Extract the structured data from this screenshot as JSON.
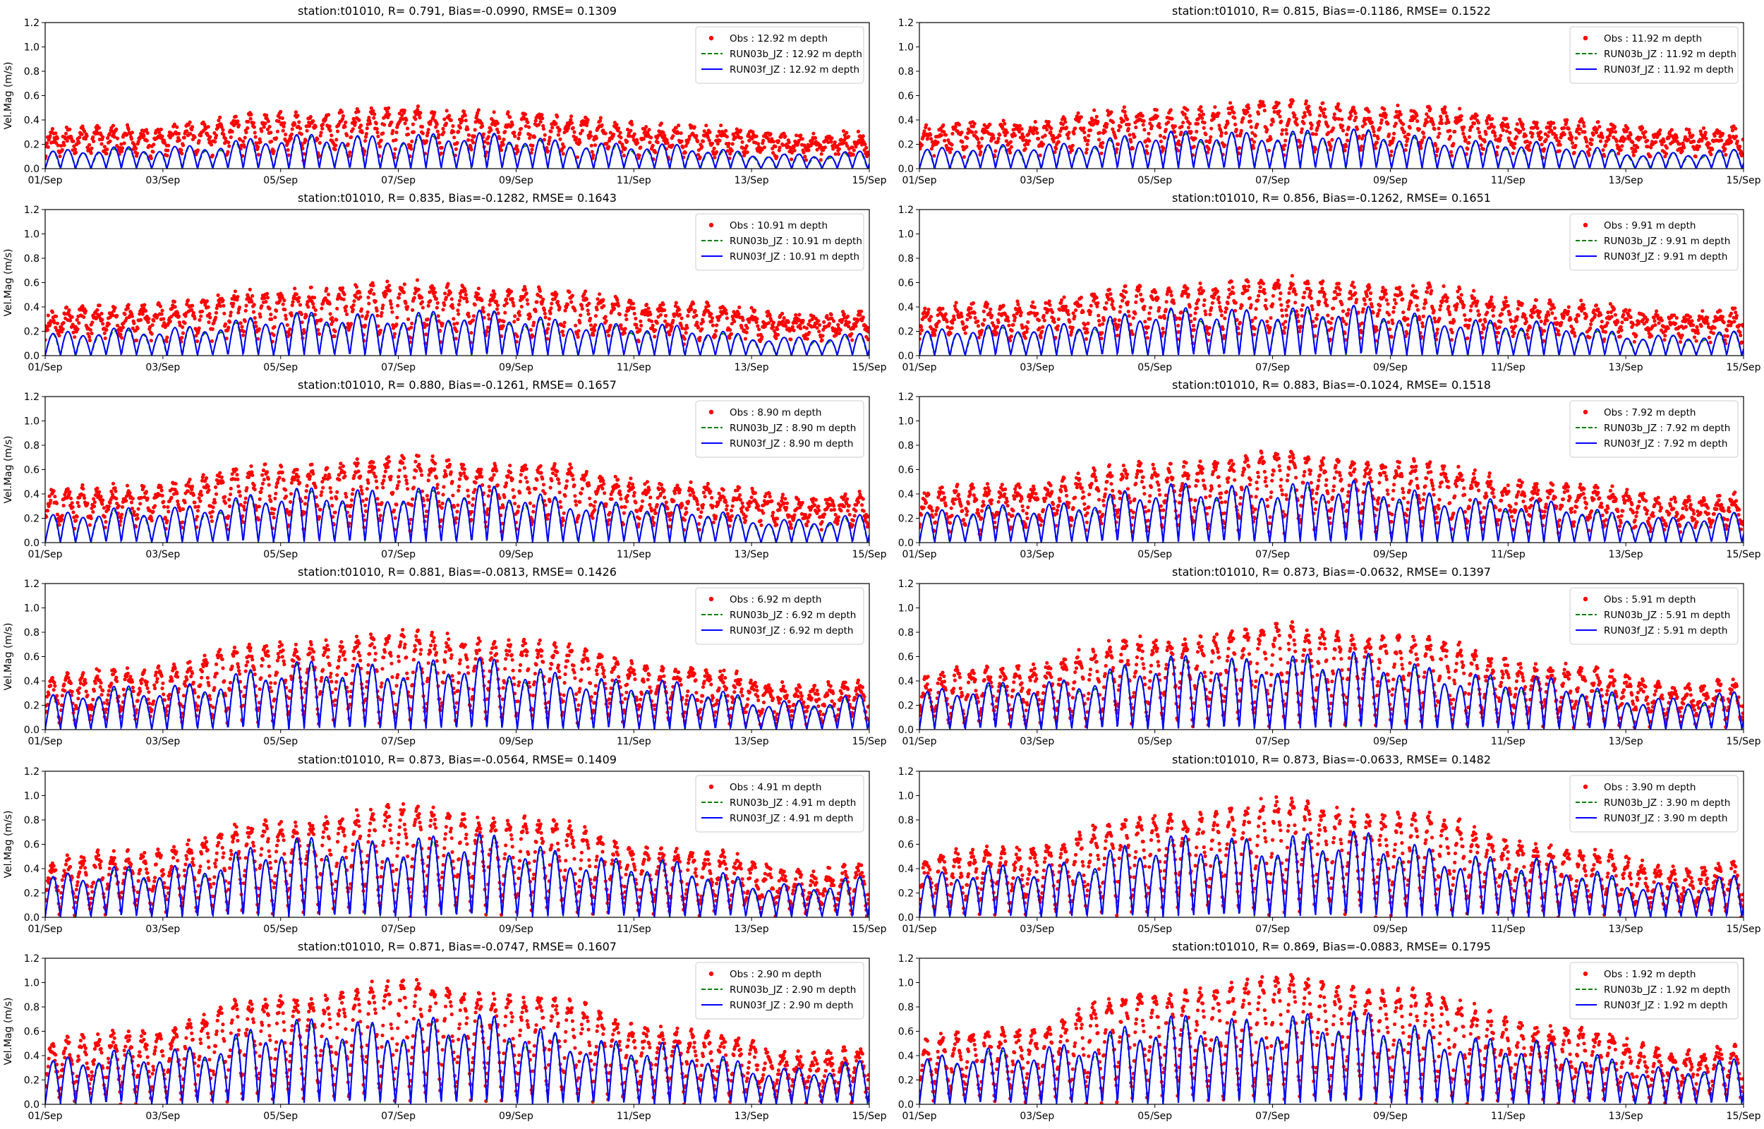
{
  "figure": {
    "ylabel": "Vel.Mag (m/s)"
  },
  "chart_data": [
    {
      "type": "line",
      "title": "station:t01010, R= 0.791, Bias=-0.0990, RMSE= 0.1309",
      "ylim": [
        0,
        1.2
      ],
      "yticks": [
        "0.0",
        "0.2",
        "0.4",
        "0.6",
        "0.8",
        "1.0",
        "1.2"
      ],
      "xticks": [
        "01/Sep",
        "03/Sep",
        "05/Sep",
        "07/Sep",
        "09/Sep",
        "11/Sep",
        "13/Sep",
        "15/Sep"
      ],
      "xlim_days": [
        0,
        14
      ],
      "ylabel": "Vel.Mag (m/s)",
      "legend_position": "top-right",
      "series": [
        {
          "name": "Obs : 12.92 m depth",
          "style": "dots",
          "color": "#ff0000"
        },
        {
          "name": "RUN03b_JZ : 12.92 m depth",
          "style": "dashed",
          "color": "#008000"
        },
        {
          "name": "RUN03f_JZ : 12.92 m depth",
          "style": "solid",
          "color": "#0000ff"
        }
      ],
      "model_peak_m/s": 0.3,
      "obs_peak_m/s": 0.45,
      "obs_base_m/s": 0.12
    },
    {
      "type": "line",
      "title": "station:t01010, R= 0.815, Bias=-0.1186, RMSE= 0.1522",
      "ylim": [
        0,
        1.2
      ],
      "yticks": [
        "0.0",
        "0.2",
        "0.4",
        "0.6",
        "0.8",
        "1.0",
        "1.2"
      ],
      "xticks": [
        "01/Sep",
        "03/Sep",
        "05/Sep",
        "07/Sep",
        "09/Sep",
        "11/Sep",
        "13/Sep",
        "15/Sep"
      ],
      "xlim_days": [
        0,
        14
      ],
      "ylabel": "",
      "legend_position": "top-right",
      "series": [
        {
          "name": "Obs : 11.92 m depth",
          "style": "dots",
          "color": "#ff0000"
        },
        {
          "name": "RUN03b_JZ : 11.92 m depth",
          "style": "dashed",
          "color": "#008000"
        },
        {
          "name": "RUN03f_JZ : 11.92 m depth",
          "style": "solid",
          "color": "#0000ff"
        }
      ],
      "model_peak_m/s": 0.33,
      "obs_peak_m/s": 0.5,
      "obs_base_m/s": 0.14
    },
    {
      "type": "line",
      "title": "station:t01010, R= 0.835, Bias=-0.1282, RMSE= 0.1643",
      "ylim": [
        0,
        1.2
      ],
      "yticks": [
        "0.0",
        "0.2",
        "0.4",
        "0.6",
        "0.8",
        "1.0",
        "1.2"
      ],
      "xticks": [
        "01/Sep",
        "03/Sep",
        "05/Sep",
        "07/Sep",
        "09/Sep",
        "11/Sep",
        "13/Sep",
        "15/Sep"
      ],
      "xlim_days": [
        0,
        14
      ],
      "ylabel": "Vel.Mag (m/s)",
      "legend_position": "top-right",
      "series": [
        {
          "name": "Obs : 10.91 m depth",
          "style": "dots",
          "color": "#ff0000"
        },
        {
          "name": "RUN03b_JZ : 10.91 m depth",
          "style": "dashed",
          "color": "#008000"
        },
        {
          "name": "RUN03f_JZ : 10.91 m depth",
          "style": "solid",
          "color": "#0000ff"
        }
      ],
      "model_peak_m/s": 0.38,
      "obs_peak_m/s": 0.55,
      "obs_base_m/s": 0.15
    },
    {
      "type": "line",
      "title": "station:t01010, R= 0.856, Bias=-0.1262, RMSE= 0.1651",
      "ylim": [
        0,
        1.2
      ],
      "yticks": [
        "0.0",
        "0.2",
        "0.4",
        "0.6",
        "0.8",
        "1.0",
        "1.2"
      ],
      "xticks": [
        "01/Sep",
        "03/Sep",
        "05/Sep",
        "07/Sep",
        "09/Sep",
        "11/Sep",
        "13/Sep",
        "15/Sep"
      ],
      "xlim_days": [
        0,
        14
      ],
      "ylabel": "",
      "legend_position": "top-right",
      "series": [
        {
          "name": "Obs : 9.91 m depth",
          "style": "dots",
          "color": "#ff0000"
        },
        {
          "name": "RUN03b_JZ : 9.91 m depth",
          "style": "dashed",
          "color": "#008000"
        },
        {
          "name": "RUN03f_JZ : 9.91 m depth",
          "style": "solid",
          "color": "#0000ff"
        }
      ],
      "model_peak_m/s": 0.42,
      "obs_peak_m/s": 0.58,
      "obs_base_m/s": 0.15
    },
    {
      "type": "line",
      "title": "station:t01010, R= 0.880, Bias=-0.1261, RMSE= 0.1657",
      "ylim": [
        0,
        1.2
      ],
      "yticks": [
        "0.0",
        "0.2",
        "0.4",
        "0.6",
        "0.8",
        "1.0",
        "1.2"
      ],
      "xticks": [
        "01/Sep",
        "03/Sep",
        "05/Sep",
        "07/Sep",
        "09/Sep",
        "11/Sep",
        "13/Sep",
        "15/Sep"
      ],
      "xlim_days": [
        0,
        14
      ],
      "ylabel": "Vel.Mag (m/s)",
      "legend_position": "top-right",
      "series": [
        {
          "name": "Obs : 8.90 m depth",
          "style": "dots",
          "color": "#ff0000"
        },
        {
          "name": "RUN03b_JZ : 8.90 m depth",
          "style": "dashed",
          "color": "#008000"
        },
        {
          "name": "RUN03f_JZ : 8.90 m depth",
          "style": "solid",
          "color": "#0000ff"
        }
      ],
      "model_peak_m/s": 0.48,
      "obs_peak_m/s": 0.65,
      "obs_base_m/s": 0.15
    },
    {
      "type": "line",
      "title": "station:t01010, R= 0.883, Bias=-0.1024, RMSE= 0.1518",
      "ylim": [
        0,
        1.2
      ],
      "yticks": [
        "0.0",
        "0.2",
        "0.4",
        "0.6",
        "0.8",
        "1.0",
        "1.2"
      ],
      "xticks": [
        "01/Sep",
        "03/Sep",
        "05/Sep",
        "07/Sep",
        "09/Sep",
        "11/Sep",
        "13/Sep",
        "15/Sep"
      ],
      "xlim_days": [
        0,
        14
      ],
      "ylabel": "",
      "legend_position": "top-right",
      "series": [
        {
          "name": "Obs : 7.92 m depth",
          "style": "dots",
          "color": "#ff0000"
        },
        {
          "name": "RUN03b_JZ : 7.92 m depth",
          "style": "dashed",
          "color": "#008000"
        },
        {
          "name": "RUN03f_JZ : 7.92 m depth",
          "style": "solid",
          "color": "#0000ff"
        }
      ],
      "model_peak_m/s": 0.52,
      "obs_peak_m/s": 0.68,
      "obs_base_m/s": 0.12
    },
    {
      "type": "line",
      "title": "station:t01010, R= 0.881, Bias=-0.0813, RMSE= 0.1426",
      "ylim": [
        0,
        1.2
      ],
      "yticks": [
        "0.0",
        "0.2",
        "0.4",
        "0.6",
        "0.8",
        "1.0",
        "1.2"
      ],
      "xticks": [
        "01/Sep",
        "03/Sep",
        "05/Sep",
        "07/Sep",
        "09/Sep",
        "11/Sep",
        "13/Sep",
        "15/Sep"
      ],
      "xlim_days": [
        0,
        14
      ],
      "ylabel": "Vel.Mag (m/s)",
      "legend_position": "top-right",
      "series": [
        {
          "name": "Obs : 6.92 m depth",
          "style": "dots",
          "color": "#ff0000"
        },
        {
          "name": "RUN03b_JZ : 6.92 m depth",
          "style": "dashed",
          "color": "#008000"
        },
        {
          "name": "RUN03f_JZ : 6.92 m depth",
          "style": "solid",
          "color": "#0000ff"
        }
      ],
      "model_peak_m/s": 0.6,
      "obs_peak_m/s": 0.75,
      "obs_base_m/s": 0.08
    },
    {
      "type": "line",
      "title": "station:t01010, R= 0.873, Bias=-0.0632, RMSE= 0.1397",
      "ylim": [
        0,
        1.2
      ],
      "yticks": [
        "0.0",
        "0.2",
        "0.4",
        "0.6",
        "0.8",
        "1.0",
        "1.2"
      ],
      "xticks": [
        "01/Sep",
        "03/Sep",
        "05/Sep",
        "07/Sep",
        "09/Sep",
        "11/Sep",
        "13/Sep",
        "15/Sep"
      ],
      "xlim_days": [
        0,
        14
      ],
      "ylabel": "",
      "legend_position": "top-right",
      "series": [
        {
          "name": "Obs : 5.91 m depth",
          "style": "dots",
          "color": "#ff0000"
        },
        {
          "name": "RUN03b_JZ : 5.91 m depth",
          "style": "dashed",
          "color": "#008000"
        },
        {
          "name": "RUN03f_JZ : 5.91 m depth",
          "style": "solid",
          "color": "#0000ff"
        }
      ],
      "model_peak_m/s": 0.65,
      "obs_peak_m/s": 0.8,
      "obs_base_m/s": 0.06
    },
    {
      "type": "line",
      "title": "station:t01010, R= 0.873, Bias=-0.0564, RMSE= 0.1409",
      "ylim": [
        0,
        1.2
      ],
      "yticks": [
        "0.0",
        "0.2",
        "0.4",
        "0.6",
        "0.8",
        "1.0",
        "1.2"
      ],
      "xticks": [
        "01/Sep",
        "03/Sep",
        "05/Sep",
        "07/Sep",
        "09/Sep",
        "11/Sep",
        "13/Sep",
        "15/Sep"
      ],
      "xlim_days": [
        0,
        14
      ],
      "ylabel": "Vel.Mag (m/s)",
      "legend_position": "top-right",
      "series": [
        {
          "name": "Obs : 4.91 m depth",
          "style": "dots",
          "color": "#ff0000"
        },
        {
          "name": "RUN03b_JZ : 4.91 m depth",
          "style": "dashed",
          "color": "#008000"
        },
        {
          "name": "RUN03f_JZ : 4.91 m depth",
          "style": "solid",
          "color": "#0000ff"
        }
      ],
      "model_peak_m/s": 0.7,
      "obs_peak_m/s": 0.85,
      "obs_base_m/s": 0.05
    },
    {
      "type": "line",
      "title": "station:t01010, R= 0.873, Bias=-0.0633, RMSE= 0.1482",
      "ylim": [
        0,
        1.2
      ],
      "yticks": [
        "0.0",
        "0.2",
        "0.4",
        "0.6",
        "0.8",
        "1.0",
        "1.2"
      ],
      "xticks": [
        "01/Sep",
        "03/Sep",
        "05/Sep",
        "07/Sep",
        "09/Sep",
        "11/Sep",
        "13/Sep",
        "15/Sep"
      ],
      "xlim_days": [
        0,
        14
      ],
      "ylabel": "",
      "legend_position": "top-right",
      "series": [
        {
          "name": "Obs : 3.90 m depth",
          "style": "dots",
          "color": "#ff0000"
        },
        {
          "name": "RUN03b_JZ : 3.90 m depth",
          "style": "dashed",
          "color": "#008000"
        },
        {
          "name": "RUN03f_JZ : 3.90 m depth",
          "style": "solid",
          "color": "#0000ff"
        }
      ],
      "model_peak_m/s": 0.72,
      "obs_peak_m/s": 0.9,
      "obs_base_m/s": 0.05
    },
    {
      "type": "line",
      "title": "station:t01010, R= 0.871, Bias=-0.0747, RMSE= 0.1607",
      "ylim": [
        0,
        1.2
      ],
      "yticks": [
        "0.0",
        "0.2",
        "0.4",
        "0.6",
        "0.8",
        "1.0",
        "1.2"
      ],
      "xticks": [
        "01/Sep",
        "03/Sep",
        "05/Sep",
        "07/Sep",
        "09/Sep",
        "11/Sep",
        "13/Sep",
        "15/Sep"
      ],
      "xlim_days": [
        0,
        14
      ],
      "ylabel": "Vel.Mag (m/s)",
      "legend_position": "top-right",
      "series": [
        {
          "name": "Obs : 2.90 m depth",
          "style": "dots",
          "color": "#ff0000"
        },
        {
          "name": "RUN03b_JZ : 2.90 m depth",
          "style": "dashed",
          "color": "#008000"
        },
        {
          "name": "RUN03f_JZ : 2.90 m depth",
          "style": "solid",
          "color": "#0000ff"
        }
      ],
      "model_peak_m/s": 0.75,
      "obs_peak_m/s": 0.95,
      "obs_base_m/s": 0.05
    },
    {
      "type": "line",
      "title": "station:t01010, R= 0.869, Bias=-0.0883, RMSE= 0.1795",
      "ylim": [
        0,
        1.2
      ],
      "yticks": [
        "0.0",
        "0.2",
        "0.4",
        "0.6",
        "0.8",
        "1.0",
        "1.2"
      ],
      "xticks": [
        "01/Sep",
        "03/Sep",
        "05/Sep",
        "07/Sep",
        "09/Sep",
        "11/Sep",
        "13/Sep",
        "15/Sep"
      ],
      "xlim_days": [
        0,
        14
      ],
      "ylabel": "",
      "legend_position": "top-right",
      "series": [
        {
          "name": "Obs : 1.92 m depth",
          "style": "dots",
          "color": "#ff0000"
        },
        {
          "name": "RUN03b_JZ : 1.92 m depth",
          "style": "dashed",
          "color": "#008000"
        },
        {
          "name": "RUN03f_JZ : 1.92 m depth",
          "style": "solid",
          "color": "#0000ff"
        }
      ],
      "model_peak_m/s": 0.78,
      "obs_peak_m/s": 1.0,
      "obs_base_m/s": 0.05
    }
  ]
}
